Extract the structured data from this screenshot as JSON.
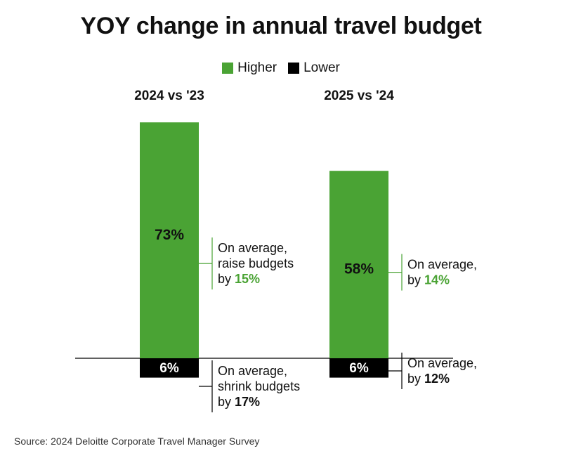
{
  "title": "YOY change in annual travel budget",
  "source": "Source: 2024 Deloitte Corporate Travel Manager Survey",
  "colors": {
    "higher": "#4aa334",
    "lower": "#000000",
    "accent_text": "#4aa334"
  },
  "legend": [
    {
      "label": "Higher",
      "color": "#4aa334"
    },
    {
      "label": "Lower",
      "color": "#000000"
    }
  ],
  "chart_data": {
    "type": "bar",
    "title": "YOY change in annual travel budget",
    "categories": [
      "2024 vs '23",
      "2025 vs '24"
    ],
    "series": [
      {
        "name": "Higher",
        "values": [
          73,
          58
        ]
      },
      {
        "name": "Lower",
        "values": [
          6,
          6
        ]
      }
    ],
    "value_labels": {
      "higher": [
        "73%",
        "58%"
      ],
      "lower": [
        "6%",
        "6%"
      ]
    },
    "annotations": {
      "higher": [
        {
          "lines": [
            "On average,",
            "raise budgets",
            "by "
          ],
          "value": "15%"
        },
        {
          "lines": [
            "On average,",
            "by "
          ],
          "value": "14%"
        }
      ],
      "lower": [
        {
          "lines": [
            "On average,",
            "shrink budgets",
            "by "
          ],
          "value": "17%"
        },
        {
          "lines": [
            "On average,",
            "by "
          ],
          "value": "12%"
        }
      ]
    },
    "unit": "%",
    "legend_position": "top-center",
    "grid": false
  }
}
